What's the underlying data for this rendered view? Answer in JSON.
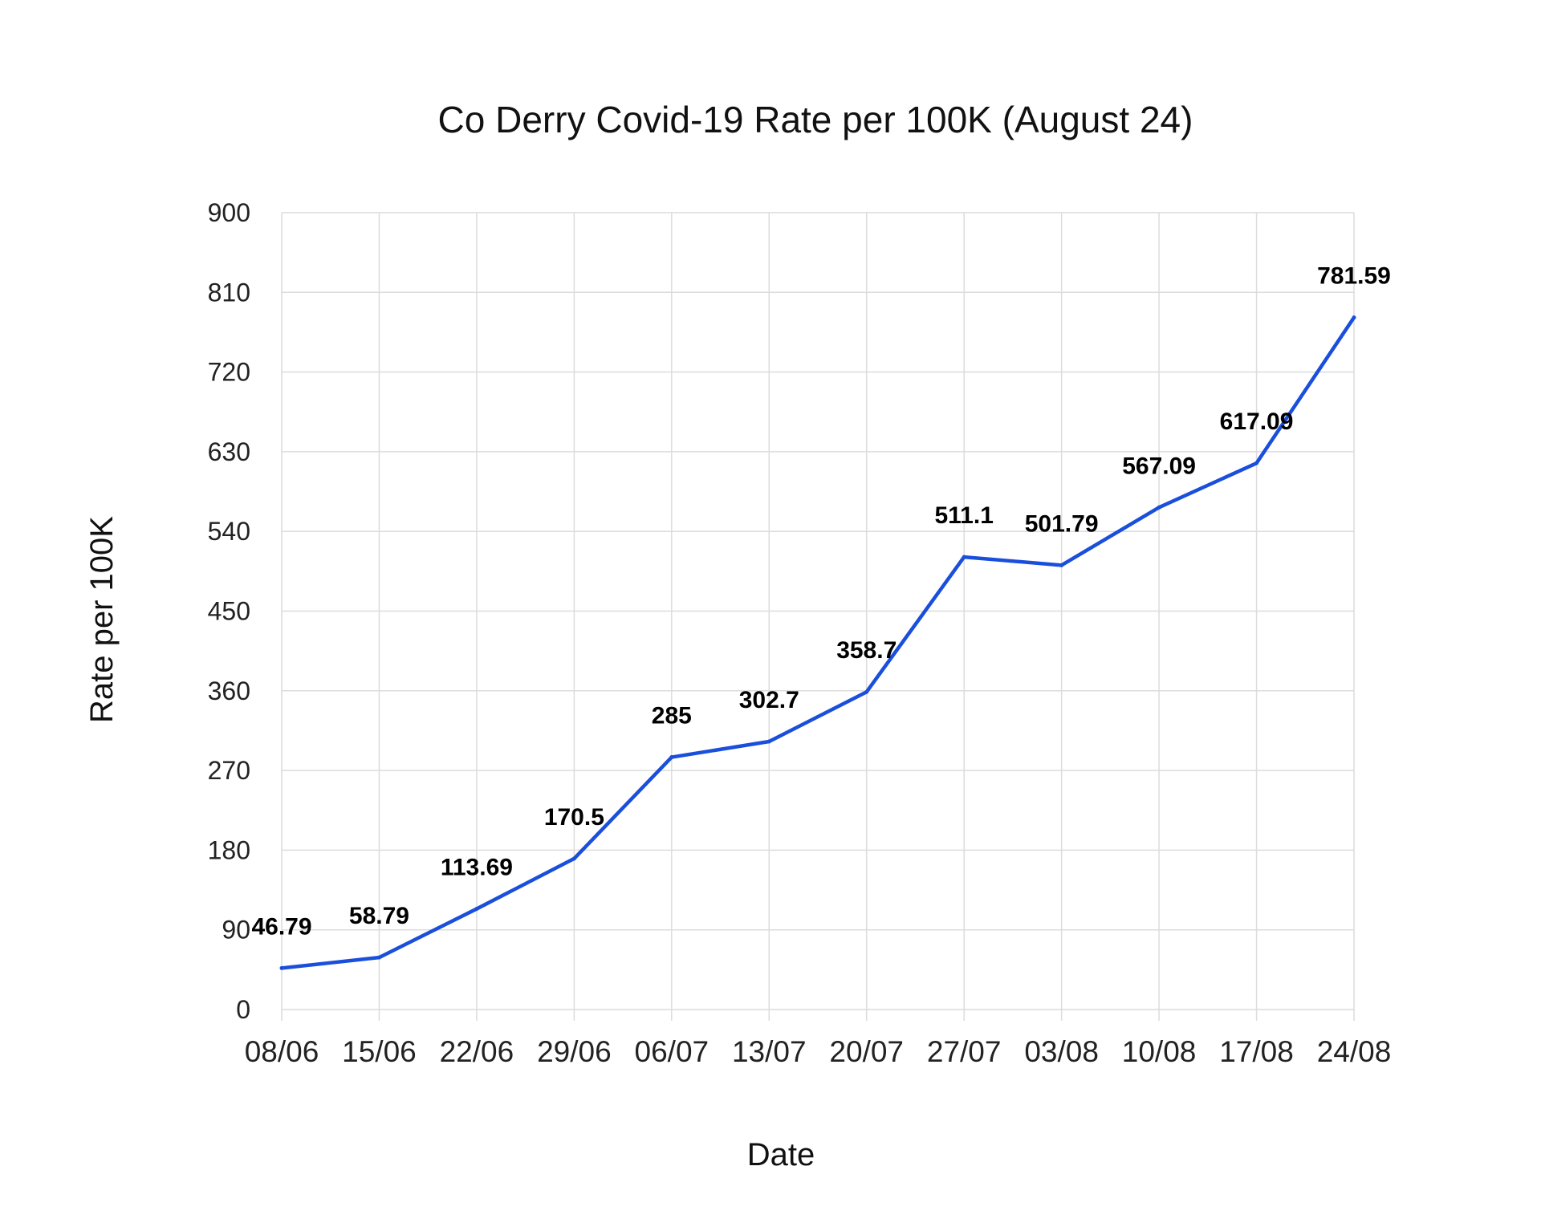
{
  "chart_data": {
    "type": "line",
    "title": "Co Derry Covid-19 Rate per 100K (August 24)",
    "xlabel": "Date",
    "ylabel": "Rate per 100K",
    "categories": [
      "08/06",
      "15/06",
      "22/06",
      "29/06",
      "06/07",
      "13/07",
      "20/07",
      "27/07",
      "03/08",
      "10/08",
      "17/08",
      "24/08"
    ],
    "series": [
      {
        "values": [
          46.79,
          58.79,
          113.69,
          170.5,
          285,
          302.7,
          358.7,
          511.1,
          501.79,
          567.09,
          617.09,
          781.59
        ],
        "labels": [
          "46.79",
          "58.79",
          "113.69",
          "170.5",
          "285",
          "302.7",
          "358.7",
          "511.1",
          "501.79",
          "567.09",
          "617.09",
          "781.59"
        ],
        "color": "#1a4fdb"
      }
    ],
    "ylim": [
      0,
      900
    ],
    "yticks": [
      "0",
      "90",
      "180",
      "270",
      "360",
      "450",
      "540",
      "630",
      "720",
      "810",
      "900"
    ],
    "grid": true,
    "legend": "none"
  }
}
